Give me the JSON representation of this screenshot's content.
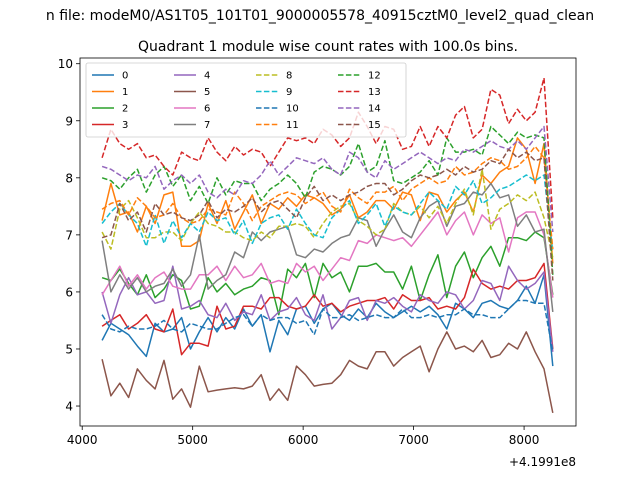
{
  "figure": {
    "suptitle": "n file: modeM0/AS1T05_101T01_9000005578_40915cztM0_level2_quad_clean",
    "title": "Quadrant 1 module wise count rates with 100.0s bins.",
    "offset_label": "+4.1991e8"
  },
  "chart_data": {
    "type": "line",
    "title": "Quadrant 1 module wise count rates with 100.0s bins.",
    "xlabel": "",
    "ylabel": "",
    "x_offset": 419910000,
    "xlim": [
      3980,
      8470
    ],
    "ylim": [
      3.65,
      10.1
    ],
    "xticks": [
      4000,
      5000,
      6000,
      7000,
      8000
    ],
    "xtick_labels": [
      "4000",
      "5000",
      "6000",
      "7000",
      "8000"
    ],
    "yticks": [
      4,
      5,
      6,
      7,
      8,
      9,
      10
    ],
    "ytick_labels": [
      "4",
      "5",
      "6",
      "7",
      "8",
      "9",
      "10"
    ],
    "legend_location": "upper-left",
    "legend_columns": 4,
    "x": [
      4180,
      4260,
      4340,
      4420,
      4500,
      4580,
      4660,
      4740,
      4820,
      4900,
      4980,
      5060,
      5140,
      5220,
      5300,
      5380,
      5460,
      5540,
      5620,
      5700,
      5780,
      5860,
      5940,
      6020,
      6100,
      6180,
      6260,
      6340,
      6420,
      6500,
      6580,
      6660,
      6740,
      6820,
      6900,
      6980,
      7060,
      7140,
      7220,
      7300,
      7380,
      7460,
      7540,
      7620,
      7700,
      7780,
      7860,
      7940,
      8020,
      8100,
      8180,
      8260
    ],
    "series": [
      {
        "name": "0",
        "color": "#1f77b4",
        "dashed": false,
        "values": [
          5.15,
          5.45,
          5.35,
          5.25,
          5.05,
          4.87,
          5.45,
          5.3,
          5.35,
          5.55,
          5.0,
          5.3,
          5.55,
          5.3,
          5.55,
          5.35,
          5.7,
          5.4,
          5.6,
          4.95,
          5.5,
          5.25,
          5.7,
          5.75,
          5.45,
          5.7,
          5.8,
          5.6,
          5.5,
          5.7,
          5.55,
          5.8,
          5.65,
          5.55,
          5.65,
          5.75,
          5.65,
          5.75,
          5.6,
          5.35,
          5.8,
          5.7,
          5.55,
          5.8,
          5.85,
          5.75,
          5.7,
          5.85,
          6.1,
          5.8,
          6.3,
          4.7
        ]
      },
      {
        "name": "1",
        "color": "#ff7f0e",
        "dashed": false,
        "values": [
          7.25,
          7.9,
          7.35,
          7.4,
          7.05,
          7.5,
          7.2,
          7.7,
          7.75,
          6.8,
          6.8,
          6.9,
          7.55,
          7.2,
          7.6,
          7.1,
          7.4,
          7.7,
          7.2,
          7.55,
          7.45,
          7.65,
          7.5,
          7.7,
          7.65,
          7.55,
          7.35,
          7.45,
          7.7,
          7.3,
          7.4,
          7.6,
          7.6,
          7.45,
          7.75,
          7.7,
          7.25,
          7.75,
          7.7,
          7.4,
          7.6,
          7.75,
          7.4,
          8.05,
          7.9,
          8.1,
          8.2,
          8.7,
          8.5,
          7.9,
          8.6,
          6.5
        ]
      },
      {
        "name": "2",
        "color": "#2ca02c",
        "dashed": false,
        "values": [
          6.25,
          6.2,
          6.4,
          6.15,
          5.95,
          6.3,
          5.9,
          6.05,
          6.3,
          6.2,
          5.7,
          5.75,
          6.25,
          6.0,
          6.15,
          5.95,
          6.05,
          6.1,
          6.25,
          6.2,
          5.6,
          6.4,
          6.25,
          6.5,
          5.9,
          6.5,
          6.25,
          6.35,
          6.0,
          6.45,
          6.45,
          6.5,
          6.35,
          6.35,
          6.05,
          6.45,
          5.85,
          6.3,
          6.65,
          5.9,
          6.45,
          6.7,
          6.25,
          6.6,
          6.8,
          6.45,
          6.95,
          6.95,
          6.9,
          7.05,
          6.95,
          5.95
        ]
      },
      {
        "name": "3",
        "color": "#d62728",
        "dashed": false,
        "values": [
          5.4,
          5.5,
          5.6,
          5.35,
          5.45,
          5.6,
          5.35,
          5.3,
          5.7,
          4.9,
          5.1,
          5.1,
          5.05,
          5.75,
          5.35,
          5.4,
          5.75,
          5.75,
          5.7,
          5.9,
          5.9,
          5.75,
          5.7,
          5.75,
          5.95,
          5.75,
          5.8,
          5.65,
          5.75,
          5.8,
          5.85,
          5.85,
          5.9,
          5.7,
          5.95,
          5.85,
          5.85,
          5.9,
          5.7,
          5.75,
          5.7,
          5.9,
          6.4,
          6.15,
          6.05,
          6.1,
          6.05,
          6.2,
          6.2,
          6.25,
          6.5,
          5.0
        ]
      },
      {
        "name": "4",
        "color": "#9467bd",
        "dashed": false,
        "values": [
          6.0,
          5.45,
          5.95,
          6.25,
          5.95,
          6.0,
          5.8,
          5.85,
          6.45,
          5.7,
          5.75,
          5.85,
          5.6,
          5.55,
          5.8,
          5.5,
          5.65,
          5.6,
          5.95,
          5.5,
          5.65,
          5.7,
          5.9,
          5.6,
          5.5,
          5.95,
          5.35,
          5.55,
          5.85,
          5.9,
          5.5,
          5.85,
          5.8,
          5.9,
          5.75,
          5.65,
          5.95,
          5.85,
          5.8,
          6.0,
          5.95,
          5.7,
          5.85,
          6.2,
          6.15,
          5.85,
          6.45,
          6.2,
          6.05,
          6.15,
          6.35,
          4.95
        ]
      },
      {
        "name": "5",
        "color": "#8c564b",
        "dashed": false,
        "values": [
          4.82,
          4.18,
          4.4,
          4.15,
          4.65,
          4.45,
          4.3,
          4.8,
          4.12,
          4.3,
          3.98,
          4.7,
          4.25,
          4.28,
          4.3,
          4.32,
          4.3,
          4.35,
          4.55,
          4.1,
          4.3,
          4.1,
          4.7,
          4.55,
          4.35,
          4.38,
          4.4,
          4.55,
          4.8,
          4.7,
          4.65,
          4.95,
          4.95,
          4.7,
          4.85,
          4.95,
          5.05,
          4.6,
          5.0,
          5.3,
          5.0,
          5.05,
          4.95,
          5.15,
          4.85,
          4.9,
          5.1,
          5.0,
          5.3,
          4.95,
          4.65,
          3.88
        ]
      },
      {
        "name": "6",
        "color": "#e377c2",
        "dashed": false,
        "values": [
          5.95,
          6.2,
          6.45,
          6.1,
          6.3,
          6.05,
          6.25,
          6.35,
          6.1,
          6.05,
          6.05,
          6.3,
          6.3,
          6.45,
          6.2,
          6.45,
          6.25,
          6.3,
          6.5,
          6.15,
          6.2,
          6.15,
          6.5,
          6.35,
          6.45,
          6.2,
          6.4,
          6.6,
          6.55,
          6.9,
          6.85,
          7.0,
          6.95,
          6.9,
          6.95,
          6.8,
          7.0,
          7.2,
          7.4,
          7.0,
          7.25,
          7.4,
          7.0,
          7.35,
          7.2,
          7.3,
          6.7,
          7.3,
          7.4,
          7.4,
          7.0,
          5.9
        ]
      },
      {
        "name": "7",
        "color": "#7f7f7f",
        "dashed": false,
        "values": [
          6.9,
          6.0,
          6.3,
          6.05,
          6.25,
          6.0,
          6.1,
          6.15,
          6.4,
          6.1,
          6.3,
          7.0,
          6.05,
          6.2,
          6.3,
          6.7,
          6.6,
          7.05,
          6.9,
          7.05,
          7.1,
          7.15,
          6.65,
          6.6,
          6.75,
          6.7,
          6.85,
          6.95,
          7.0,
          7.3,
          7.25,
          6.8,
          7.1,
          7.35,
          7.05,
          6.95,
          7.3,
          7.5,
          7.6,
          7.15,
          7.5,
          7.55,
          7.75,
          7.7,
          7.9,
          7.65,
          7.7,
          7.15,
          7.35,
          7.05,
          7.1,
          5.65
        ]
      },
      {
        "name": "8",
        "color": "#bcbd22",
        "dashed": true,
        "values": [
          7.05,
          6.75,
          7.45,
          7.6,
          7.3,
          6.95,
          6.95,
          7.05,
          7.05,
          6.9,
          7.2,
          7.4,
          7.2,
          7.15,
          7.05,
          7.05,
          6.95,
          6.9,
          7.05,
          6.95,
          7.15,
          7.15,
          7.2,
          7.15,
          6.95,
          7.2,
          7.4,
          7.5,
          7.55,
          7.25,
          7.15,
          7.0,
          7.1,
          7.55,
          7.4,
          7.35,
          7.5,
          7.3,
          7.5,
          7.2,
          7.55,
          7.8,
          7.35,
          8.15,
          7.1,
          7.45,
          7.55,
          7.7,
          7.6,
          7.75,
          7.3,
          6.6
        ]
      },
      {
        "name": "9",
        "color": "#17becf",
        "dashed": true,
        "values": [
          7.2,
          7.4,
          7.55,
          7.35,
          7.2,
          6.8,
          7.35,
          6.85,
          7.25,
          6.95,
          7.2,
          7.05,
          7.4,
          7.25,
          7.3,
          7.0,
          7.25,
          6.85,
          7.2,
          7.3,
          7.35,
          7.1,
          7.45,
          7.2,
          7.0,
          6.95,
          7.3,
          7.45,
          7.6,
          7.2,
          7.35,
          7.55,
          7.15,
          7.5,
          7.4,
          7.35,
          7.55,
          7.75,
          7.6,
          7.45,
          7.85,
          7.7,
          7.95,
          7.55,
          7.65,
          7.8,
          7.85,
          7.95,
          8.05,
          7.95,
          8.05,
          6.7
        ]
      },
      {
        "name": "10",
        "color": "#1f77b4",
        "dashed": true,
        "values": [
          5.6,
          5.35,
          5.3,
          5.4,
          5.35,
          5.35,
          5.4,
          5.5,
          5.35,
          5.3,
          5.45,
          5.4,
          5.35,
          5.35,
          5.45,
          5.55,
          5.6,
          5.4,
          5.6,
          5.5,
          5.55,
          5.55,
          5.45,
          5.5,
          5.25,
          5.7,
          5.55,
          5.55,
          5.6,
          5.5,
          5.55,
          5.6,
          5.55,
          5.55,
          5.7,
          5.55,
          5.55,
          5.6,
          5.55,
          5.6,
          5.6,
          5.7,
          5.6,
          5.6,
          5.55,
          5.55,
          5.7,
          5.85,
          5.85,
          5.8,
          5.8,
          4.95
        ]
      },
      {
        "name": "11",
        "color": "#ff7f0e",
        "dashed": true,
        "values": [
          7.45,
          7.55,
          7.6,
          7.35,
          7.65,
          7.5,
          7.3,
          7.35,
          7.55,
          7.3,
          7.2,
          7.25,
          7.45,
          7.4,
          7.35,
          7.75,
          7.55,
          7.25,
          7.5,
          7.6,
          7.7,
          7.75,
          7.7,
          7.55,
          7.65,
          7.75,
          7.5,
          7.4,
          7.8,
          7.65,
          7.55,
          7.75,
          7.75,
          7.85,
          7.6,
          7.8,
          7.9,
          8.0,
          7.9,
          7.95,
          8.2,
          8.05,
          8.1,
          8.25,
          8.35,
          8.3,
          8.15,
          8.2,
          8.35,
          8.55,
          8.35,
          6.75
        ]
      },
      {
        "name": "12",
        "color": "#2ca02c",
        "dashed": true,
        "values": [
          8.0,
          7.95,
          7.8,
          8.0,
          8.15,
          7.75,
          8.05,
          8.2,
          7.85,
          8.05,
          7.6,
          7.85,
          7.55,
          8.0,
          7.7,
          7.95,
          7.9,
          7.9,
          7.6,
          7.8,
          7.9,
          8.05,
          7.9,
          7.65,
          8.1,
          8.2,
          8.15,
          8.05,
          8.2,
          8.6,
          8.1,
          8.2,
          8.65,
          7.95,
          7.9,
          8.0,
          8.1,
          8.3,
          8.05,
          8.7,
          8.45,
          8.45,
          8.5,
          8.4,
          8.9,
          8.75,
          8.6,
          8.8,
          8.7,
          8.75,
          8.7,
          6.3
        ]
      },
      {
        "name": "13",
        "color": "#d62728",
        "dashed": true,
        "values": [
          8.35,
          8.85,
          8.6,
          8.5,
          8.6,
          8.35,
          8.4,
          8.2,
          8.05,
          8.45,
          8.35,
          8.3,
          8.7,
          8.45,
          8.3,
          8.55,
          8.4,
          8.5,
          8.45,
          8.2,
          8.45,
          8.7,
          8.65,
          8.7,
          8.6,
          8.85,
          8.75,
          8.55,
          8.7,
          9.15,
          8.9,
          8.6,
          8.9,
          8.85,
          8.5,
          8.55,
          8.9,
          8.55,
          8.9,
          8.7,
          9.1,
          9.25,
          8.7,
          8.85,
          9.55,
          9.45,
          8.95,
          9.2,
          9.0,
          9.15,
          9.75,
          7.3
        ]
      },
      {
        "name": "14",
        "color": "#9467bd",
        "dashed": true,
        "values": [
          8.2,
          8.15,
          8.05,
          7.95,
          8.05,
          8.0,
          8.2,
          7.8,
          7.95,
          8.05,
          7.9,
          8.05,
          7.75,
          7.65,
          7.8,
          7.7,
          7.95,
          7.9,
          8.05,
          8.3,
          8.05,
          8.2,
          8.35,
          8.3,
          8.25,
          8.35,
          8.15,
          8.05,
          8.45,
          8.35,
          8.1,
          8.0,
          8.3,
          8.15,
          8.25,
          8.35,
          8.45,
          8.35,
          8.25,
          8.35,
          8.3,
          8.5,
          8.45,
          8.55,
          8.65,
          8.55,
          8.5,
          8.65,
          8.5,
          8.7,
          8.9,
          7.05
        ]
      },
      {
        "name": "15",
        "color": "#8c564b",
        "dashed": true,
        "values": [
          6.95,
          7.0,
          7.55,
          7.25,
          7.4,
          7.05,
          7.55,
          7.35,
          7.4,
          7.3,
          7.25,
          7.35,
          7.6,
          7.3,
          7.45,
          7.4,
          7.5,
          7.65,
          7.4,
          7.55,
          7.6,
          7.45,
          7.3,
          7.65,
          7.85,
          7.6,
          7.7,
          7.6,
          7.7,
          7.75,
          7.85,
          7.9,
          7.9,
          7.7,
          7.8,
          7.95,
          8.05,
          8.0,
          8.05,
          8.15,
          8.05,
          8.2,
          8.1,
          8.15,
          8.3,
          8.25,
          8.5,
          8.35,
          8.45,
          8.3,
          8.35,
          6.2
        ]
      }
    ]
  }
}
